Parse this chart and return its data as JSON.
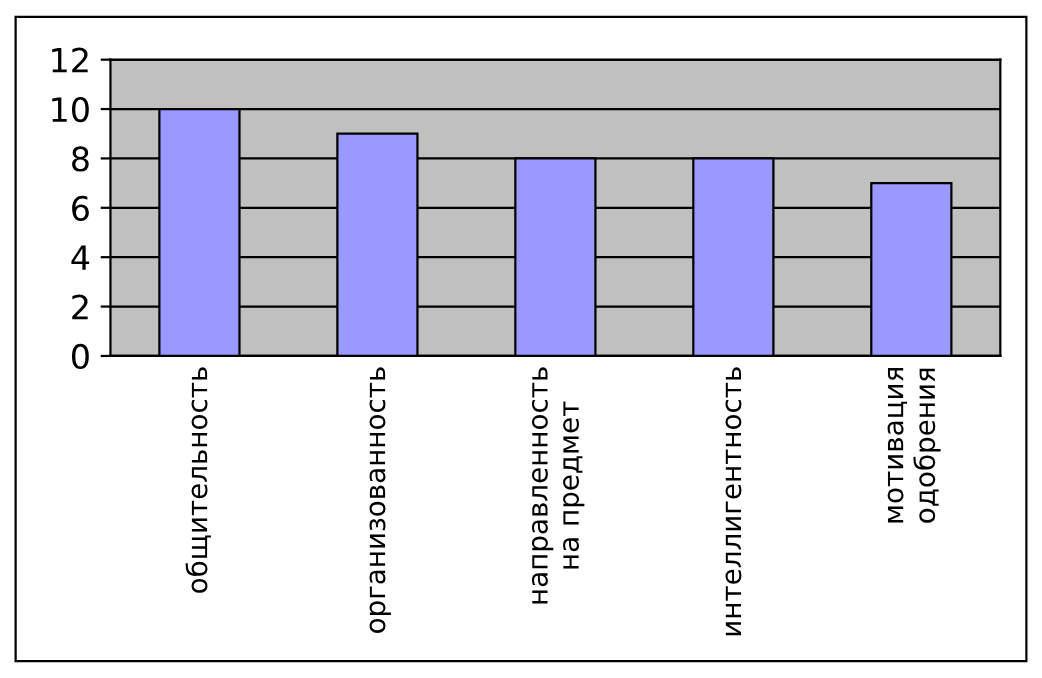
{
  "chart_data": {
    "type": "bar",
    "categories": [
      "общительность",
      "организованность",
      "направленность\nна предмет",
      "интеллигентность",
      "мотивация\nодобрения"
    ],
    "values": [
      10,
      9,
      8,
      8,
      7
    ],
    "color": "#9999ff",
    "ylim": [
      0,
      12
    ],
    "yticks": [
      0,
      2,
      4,
      6,
      8,
      10,
      12
    ],
    "grid": "y"
  }
}
